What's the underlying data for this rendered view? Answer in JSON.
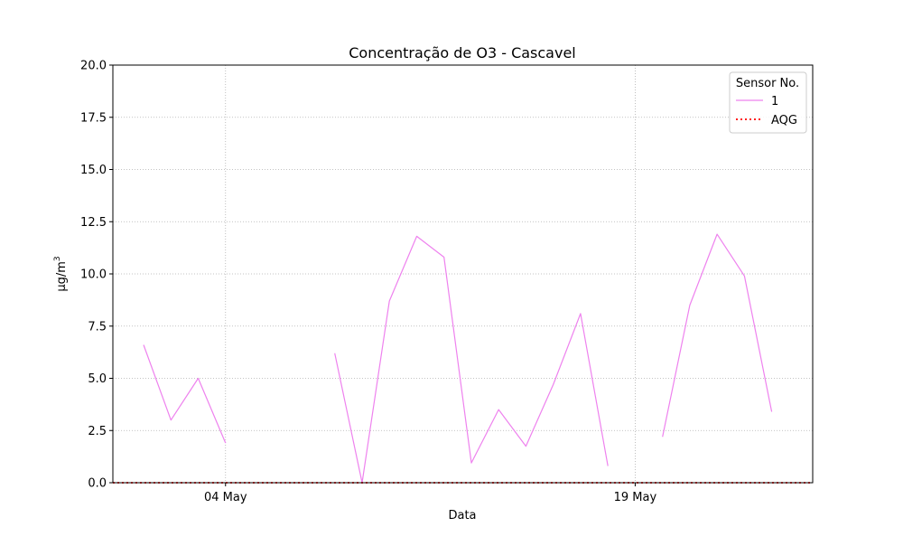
{
  "chart_data": {
    "type": "line",
    "title": "Concentração de O3 - Cascavel",
    "xlabel": "Data",
    "ylabel_base": "µg/m",
    "ylabel_sup": "3",
    "ylim": [
      0,
      20
    ],
    "xlim": [
      "2024-04-29 21:00",
      "2024-05-25 12:00"
    ],
    "yticks": [
      "0.0",
      "2.5",
      "5.0",
      "7.5",
      "10.0",
      "12.5",
      "15.0",
      "17.5",
      "20.0"
    ],
    "xticks": [
      {
        "label": "04 May",
        "date": "2024-05-04"
      },
      {
        "label": "19 May",
        "date": "2024-05-19"
      }
    ],
    "grid": true,
    "legend": {
      "title": "Sensor No.",
      "placement": "top-right"
    },
    "series": [
      {
        "name": "1",
        "color": "#ee82ee",
        "style": "solid",
        "segments": [
          [
            {
              "x": "2024-05-01",
              "y": 6.6
            },
            {
              "x": "2024-05-02",
              "y": 3.0
            },
            {
              "x": "2024-05-03",
              "y": 5.0
            },
            {
              "x": "2024-05-04",
              "y": 1.9
            }
          ],
          [
            {
              "x": "2024-05-08",
              "y": 6.2
            },
            {
              "x": "2024-05-09",
              "y": 0.0
            },
            {
              "x": "2024-05-10",
              "y": 8.7
            },
            {
              "x": "2024-05-11",
              "y": 11.8
            },
            {
              "x": "2024-05-12",
              "y": 10.8
            },
            {
              "x": "2024-05-13",
              "y": 0.95
            },
            {
              "x": "2024-05-14",
              "y": 3.5
            },
            {
              "x": "2024-05-15",
              "y": 1.75
            },
            {
              "x": "2024-05-16",
              "y": 4.7
            },
            {
              "x": "2024-05-17",
              "y": 8.1
            },
            {
              "x": "2024-05-18",
              "y": 0.8
            }
          ],
          [
            {
              "x": "2024-05-20",
              "y": 2.2
            },
            {
              "x": "2024-05-21",
              "y": 8.5
            },
            {
              "x": "2024-05-22",
              "y": 11.9
            },
            {
              "x": "2024-05-23",
              "y": 9.9
            },
            {
              "x": "2024-05-24",
              "y": 3.4
            }
          ]
        ]
      },
      {
        "name": "AQG",
        "color": "#ff0000",
        "style": "dotted",
        "y": 0
      }
    ]
  }
}
